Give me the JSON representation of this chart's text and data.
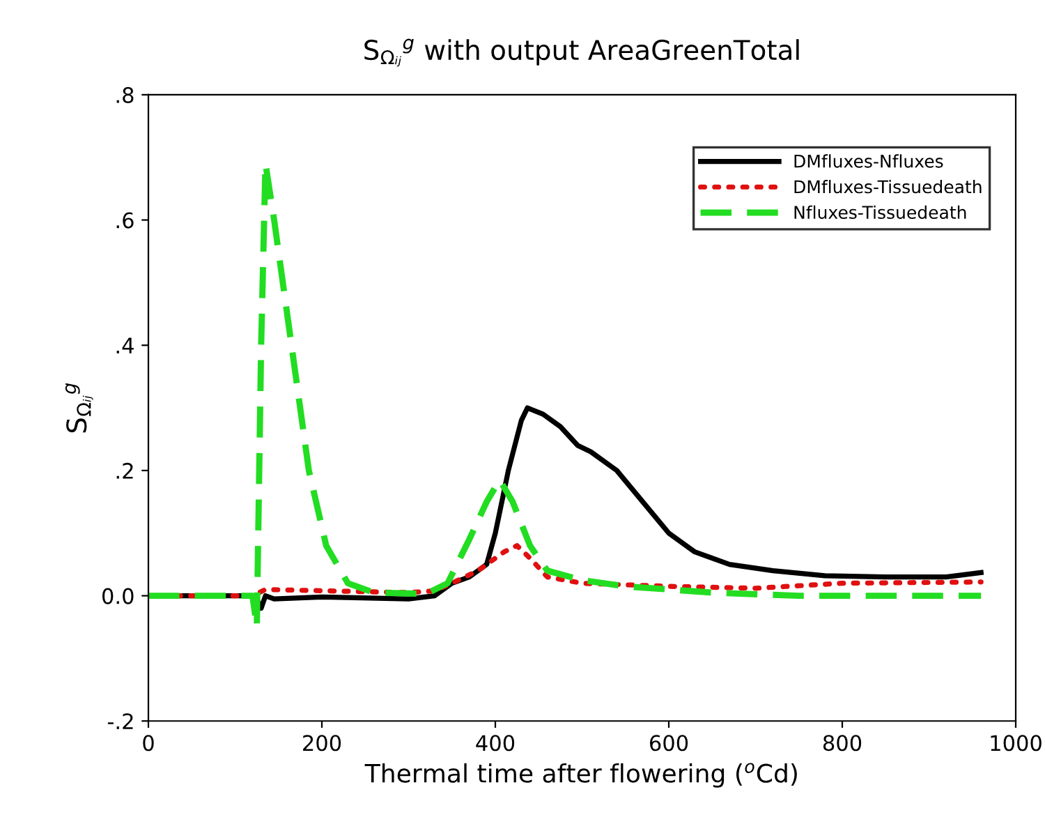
{
  "chart_data": {
    "type": "line",
    "title": "S$_{Ωᵢⱼ}$$^{g}$ with output AreaGreenTotal",
    "xlabel": "Thermal time after flowering ($^{o}$Cd)",
    "ylabel": "S$_{Ωᵢⱼ}$$^{g}$",
    "xlim": [
      0,
      1000
    ],
    "xticks": [
      0,
      200,
      400,
      600,
      800,
      1000
    ],
    "ylim": [
      -0.2,
      0.8
    ],
    "yticks": [
      {
        "value": -0.2,
        "label": "-.2"
      },
      {
        "value": 0.0,
        "label": "0.0"
      },
      {
        "value": 0.2,
        "label": ".2"
      },
      {
        "value": 0.4,
        "label": ".4"
      },
      {
        "value": 0.6,
        "label": ".6"
      },
      {
        "value": 0.8,
        "label": ".8"
      }
    ],
    "grid": false,
    "legend": "top right",
    "marker": "none",
    "series": [
      {
        "name": "DMfluxes-Nfluxes",
        "color": "#000000",
        "line_style": "solid",
        "x": [
          0,
          120,
          125,
          130,
          135,
          145,
          200,
          300,
          330,
          350,
          370,
          390,
          400,
          415,
          430,
          437,
          455,
          475,
          495,
          510,
          540,
          570,
          600,
          630,
          670,
          720,
          780,
          850,
          920,
          960
        ],
        "values": [
          0,
          0,
          -0.005,
          -0.02,
          0.0,
          -0.005,
          -0.002,
          -0.005,
          0.0,
          0.02,
          0.03,
          0.05,
          0.1,
          0.2,
          0.28,
          0.3,
          0.29,
          0.27,
          0.24,
          0.23,
          0.2,
          0.15,
          0.1,
          0.07,
          0.05,
          0.04,
          0.032,
          0.03,
          0.03,
          0.037
        ]
      },
      {
        "name": "DMfluxes-Tissuedeath",
        "color": "#e01010",
        "line_style": "dotted",
        "x": [
          0,
          120,
          135,
          200,
          300,
          330,
          350,
          380,
          410,
          425,
          440,
          460,
          500,
          600,
          700,
          800,
          960
        ],
        "values": [
          0,
          0,
          0.01,
          0.008,
          0.005,
          0.008,
          0.02,
          0.04,
          0.07,
          0.08,
          0.06,
          0.03,
          0.02,
          0.015,
          0.012,
          0.02,
          0.022
        ]
      },
      {
        "name": "Nfluxes-Tissuedeath",
        "color": "#22dd22",
        "line_style": "dashed",
        "x": [
          0,
          120,
          125,
          130,
          135,
          145,
          165,
          185,
          205,
          230,
          260,
          320,
          345,
          370,
          390,
          405,
          420,
          440,
          460,
          500,
          550,
          650,
          750,
          960
        ],
        "values": [
          0,
          0,
          -0.05,
          0.4,
          0.69,
          0.6,
          0.4,
          0.2,
          0.08,
          0.02,
          0.005,
          0.003,
          0.02,
          0.09,
          0.15,
          0.185,
          0.15,
          0.08,
          0.04,
          0.025,
          0.015,
          0.005,
          0.0,
          0.0
        ]
      }
    ]
  }
}
